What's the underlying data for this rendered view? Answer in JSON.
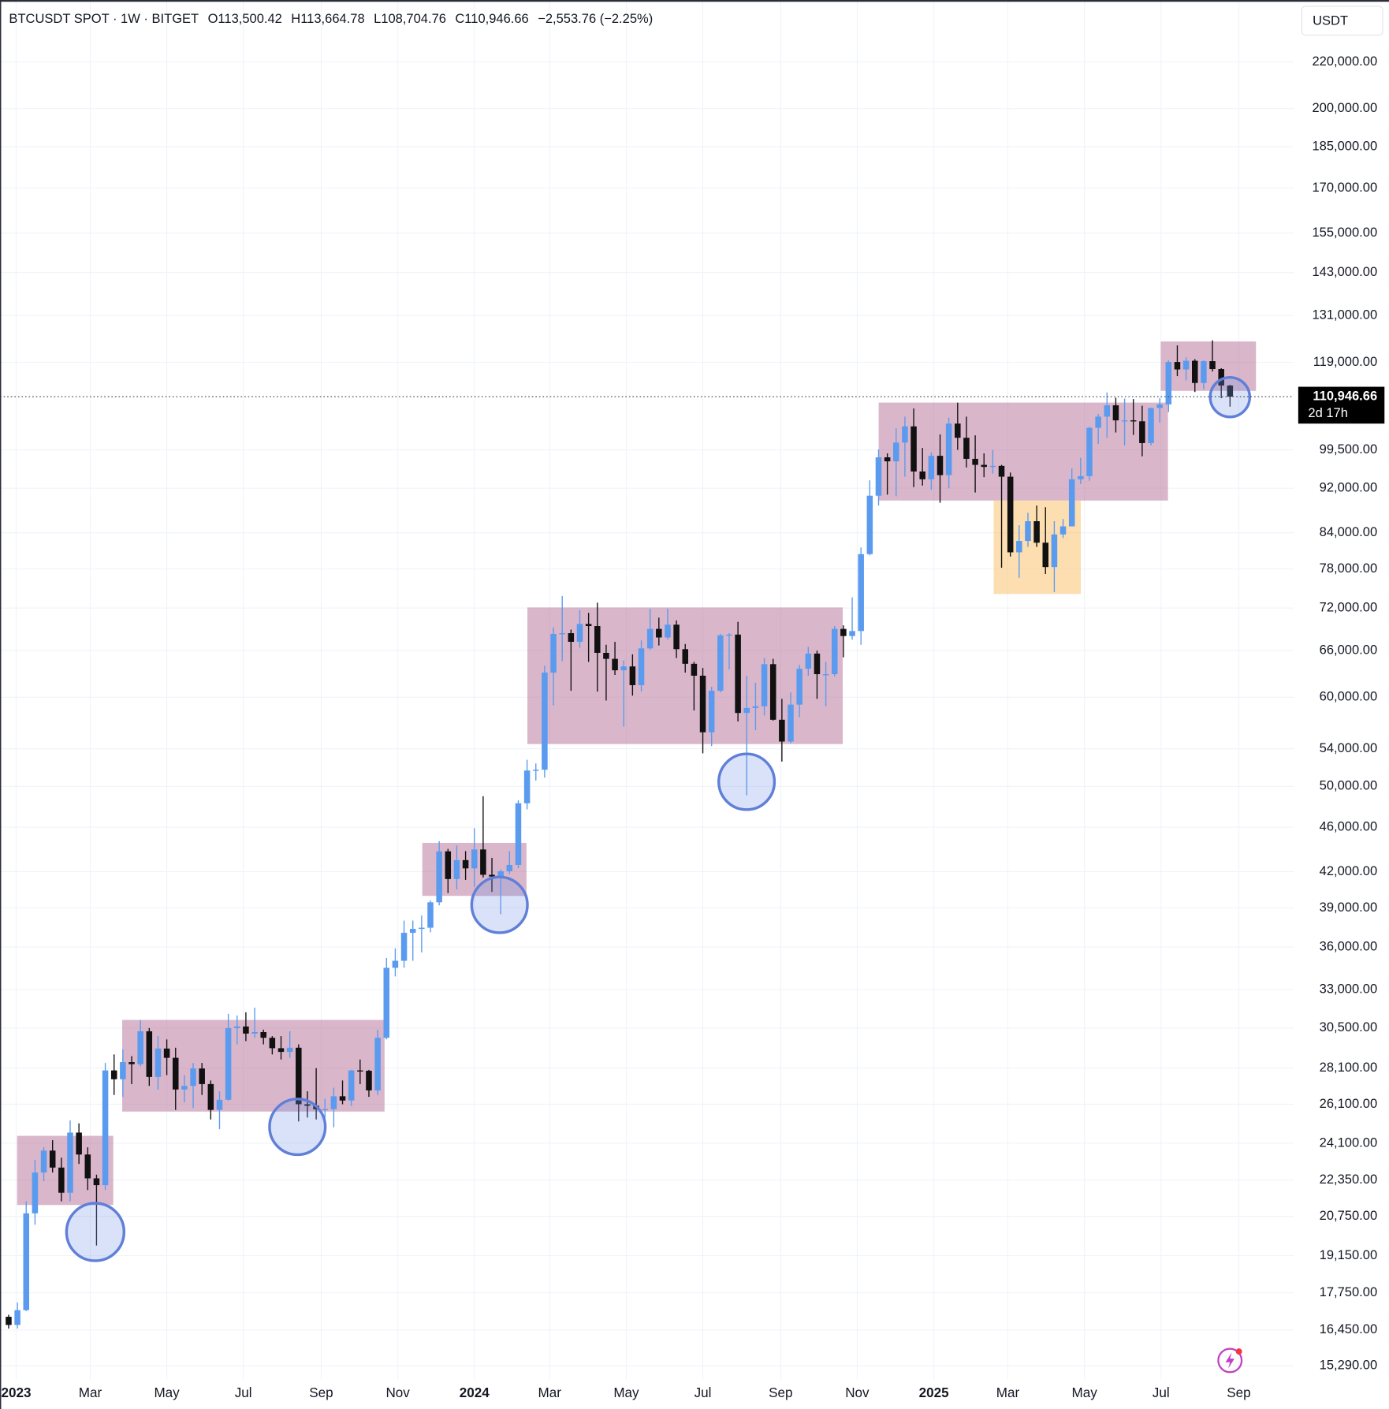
{
  "chart_data": {
    "type": "candlestick",
    "header": {
      "symbol": "BTCUSDT SPOT · 1W · BITGET",
      "open": "O113,500.42",
      "high": "H113,664.78",
      "low": "L108,704.76",
      "close": "C110,946.66",
      "change": "−2,553.76 (−2.25%)"
    },
    "currency": "USDT",
    "last_price": {
      "value": 110946.66,
      "label": "110,946.66"
    },
    "countdown": "2d 17h",
    "up_color": "#5b9bef",
    "down_color": "#111111",
    "log_scale": true,
    "grid": true,
    "xlim": [
      -0.98,
      146.25
    ],
    "xticks": [
      {
        "value": 0.857,
        "label": "2023"
      },
      {
        "value": 9.29,
        "label": "Mar"
      },
      {
        "value": 18,
        "label": "May"
      },
      {
        "value": 26.71,
        "label": "Jul"
      },
      {
        "value": 35.57,
        "label": "Sep"
      },
      {
        "value": 44.29,
        "label": "Nov"
      },
      {
        "value": 53,
        "label": "2024"
      },
      {
        "value": 61.57,
        "label": "Mar"
      },
      {
        "value": 70.29,
        "label": "May"
      },
      {
        "value": 79,
        "label": "Jul"
      },
      {
        "value": 87.86,
        "label": "Sep"
      },
      {
        "value": 96.57,
        "label": "Nov"
      },
      {
        "value": 105.29,
        "label": "2025"
      },
      {
        "value": 113.71,
        "label": "Mar"
      },
      {
        "value": 122.43,
        "label": "May"
      },
      {
        "value": 131.14,
        "label": "Jul"
      },
      {
        "value": 140,
        "label": "Sep"
      }
    ],
    "ylim": [
      14870,
      249700
    ],
    "yticks": [
      {
        "value": 220000,
        "label": "220,000.00"
      },
      {
        "value": 200000,
        "label": "200,000.00"
      },
      {
        "value": 185000,
        "label": "185,000.00"
      },
      {
        "value": 170000,
        "label": "170,000.00"
      },
      {
        "value": 155000,
        "label": "155,000.00"
      },
      {
        "value": 143000,
        "label": "143,000.00"
      },
      {
        "value": 131000,
        "label": "131,000.00"
      },
      {
        "value": 119000,
        "label": "119,000.00"
      },
      {
        "value": 99500,
        "label": "99,500.00"
      },
      {
        "value": 92000,
        "label": "92,000.00"
      },
      {
        "value": 84000,
        "label": "84,000.00"
      },
      {
        "value": 78000,
        "label": "78,000.00"
      },
      {
        "value": 72000,
        "label": "72,000.00"
      },
      {
        "value": 66000,
        "label": "66,000.00"
      },
      {
        "value": 60000,
        "label": "60,000.00"
      },
      {
        "value": 54000,
        "label": "54,000.00"
      },
      {
        "value": 50000,
        "label": "50,000.00"
      },
      {
        "value": 46000,
        "label": "46,000.00"
      },
      {
        "value": 42000,
        "label": "42,000.00"
      },
      {
        "value": 39000,
        "label": "39,000.00"
      },
      {
        "value": 36000,
        "label": "36,000.00"
      },
      {
        "value": 33000,
        "label": "33,000.00"
      },
      {
        "value": 30500,
        "label": "30,500.00"
      },
      {
        "value": 28100,
        "label": "28,100.00"
      },
      {
        "value": 26100,
        "label": "26,100.00"
      },
      {
        "value": 24100,
        "label": "24,100.00"
      },
      {
        "value": 22350,
        "label": "22,350.00"
      },
      {
        "value": 20750,
        "label": "20,750.00"
      },
      {
        "value": 19150,
        "label": "19,150.00"
      },
      {
        "value": 17750,
        "label": "17,750.00"
      },
      {
        "value": 16450,
        "label": "16,450.00"
      },
      {
        "value": 15290,
        "label": "15,290.00"
      }
    ],
    "candles": [
      [
        16900,
        16970,
        16500,
        16620
      ],
      [
        16620,
        17400,
        16500,
        17130
      ],
      [
        17130,
        21400,
        17100,
        20880
      ],
      [
        20880,
        23300,
        20400,
        22700
      ],
      [
        22700,
        23900,
        22300,
        23740
      ],
      [
        23740,
        24250,
        22700,
        22930
      ],
      [
        22930,
        23400,
        21400,
        21780
      ],
      [
        21780,
        25250,
        21400,
        24630
      ],
      [
        24630,
        25100,
        23100,
        23550
      ],
      [
        23550,
        23900,
        21900,
        22430
      ],
      [
        22430,
        22600,
        19550,
        22120
      ],
      [
        22120,
        28400,
        21900,
        27970
      ],
      [
        27970,
        28900,
        26600,
        27470
      ],
      [
        27470,
        29200,
        26500,
        28450
      ],
      [
        28450,
        28800,
        27200,
        28330
      ],
      [
        28330,
        31000,
        28200,
        30300
      ],
      [
        30300,
        30500,
        27100,
        27600
      ],
      [
        27600,
        30000,
        26900,
        29250
      ],
      [
        29250,
        29800,
        27700,
        28700
      ],
      [
        28700,
        29300,
        25800,
        26900
      ],
      [
        26900,
        27700,
        26200,
        27100
      ],
      [
        27100,
        28400,
        25900,
        28080
      ],
      [
        28080,
        28400,
        26600,
        27200
      ],
      [
        27200,
        27400,
        25300,
        25800
      ],
      [
        25800,
        26800,
        24800,
        26340
      ],
      [
        26340,
        31400,
        26300,
        30500
      ],
      [
        30500,
        31300,
        29500,
        30600
      ],
      [
        30600,
        31500,
        29700,
        30160
      ],
      [
        30160,
        31800,
        29900,
        30250
      ],
      [
        30250,
        30400,
        29500,
        29900
      ],
      [
        29900,
        30000,
        28900,
        29270
      ],
      [
        29270,
        30000,
        28600,
        29050
      ],
      [
        29050,
        30300,
        28700,
        29300
      ],
      [
        29300,
        29500,
        25200,
        26100
      ],
      [
        26100,
        26800,
        25400,
        26020
      ],
      [
        26020,
        28100,
        25300,
        25830
      ],
      [
        25830,
        26400,
        25300,
        25840
      ],
      [
        25840,
        27000,
        24900,
        26530
      ],
      [
        26530,
        27400,
        26100,
        26300
      ],
      [
        26300,
        28000,
        26000,
        27970
      ],
      [
        27970,
        28600,
        27200,
        27950
      ],
      [
        27950,
        28000,
        26500,
        26850
      ],
      [
        26850,
        30400,
        26600,
        29900
      ],
      [
        29900,
        35200,
        29800,
        34500
      ],
      [
        34500,
        35900,
        33900,
        35000
      ],
      [
        35000,
        38000,
        34500,
        37060
      ],
      [
        37060,
        38000,
        35000,
        37360
      ],
      [
        37360,
        38400,
        35600,
        37450
      ],
      [
        37450,
        39600,
        37100,
        39450
      ],
      [
        39450,
        44700,
        39200,
        43780
      ],
      [
        43780,
        44000,
        40200,
        41370
      ],
      [
        41370,
        44300,
        40500,
        43000
      ],
      [
        43000,
        43800,
        41300,
        42280
      ],
      [
        42280,
        45900,
        40700,
        43950
      ],
      [
        43950,
        49000,
        41500,
        41730
      ],
      [
        41730,
        43200,
        40300,
        41580
      ],
      [
        41580,
        42200,
        38500,
        42030
      ],
      [
        42030,
        43800,
        41800,
        42580
      ],
      [
        42580,
        48600,
        42300,
        48300
      ],
      [
        48300,
        52800,
        47700,
        51650
      ],
      [
        51650,
        52400,
        50600,
        51730
      ],
      [
        51730,
        64000,
        50900,
        63100
      ],
      [
        63100,
        69200,
        59000,
        68300
      ],
      [
        68300,
        73800,
        64600,
        68400
      ],
      [
        68400,
        68900,
        60800,
        67200
      ],
      [
        67200,
        71700,
        66400,
        69700
      ],
      [
        69700,
        71300,
        64500,
        69400
      ],
      [
        69400,
        72800,
        60700,
        65700
      ],
      [
        65700,
        66800,
        59600,
        64900
      ],
      [
        64900,
        67200,
        62800,
        63400
      ],
      [
        63400,
        64700,
        56500,
        63900
      ],
      [
        63900,
        65500,
        60200,
        61500
      ],
      [
        61500,
        67400,
        60700,
        66300
      ],
      [
        66300,
        71900,
        66100,
        69000
      ],
      [
        69000,
        70600,
        66700,
        67800
      ],
      [
        67800,
        71900,
        67500,
        69600
      ],
      [
        69600,
        70200,
        65000,
        66200
      ],
      [
        66200,
        66900,
        63100,
        64250
      ],
      [
        64250,
        64500,
        58400,
        62700
      ],
      [
        62700,
        63700,
        53500,
        55850
      ],
      [
        55850,
        61300,
        54300,
        60800
      ],
      [
        60800,
        68300,
        60600,
        68100
      ],
      [
        68100,
        68400,
        63500,
        68200
      ],
      [
        68200,
        70000,
        57100,
        58100
      ],
      [
        58100,
        62700,
        49100,
        58700
      ],
      [
        58700,
        61800,
        56100,
        58900
      ],
      [
        58900,
        65000,
        57800,
        64200
      ],
      [
        64200,
        64900,
        57200,
        57300
      ],
      [
        57300,
        59800,
        52600,
        54800
      ],
      [
        54800,
        60600,
        54600,
        59100
      ],
      [
        59100,
        64100,
        57600,
        63600
      ],
      [
        63600,
        66500,
        62700,
        65600
      ],
      [
        65600,
        66000,
        59800,
        62900
      ],
      [
        62900,
        64500,
        58900,
        62900
      ],
      [
        62900,
        69400,
        62600,
        69000
      ],
      [
        69000,
        69500,
        65100,
        68000
      ],
      [
        68000,
        73600,
        67500,
        68700
      ],
      [
        68700,
        81500,
        66800,
        80400
      ],
      [
        80400,
        93500,
        80200,
        90600
      ],
      [
        90600,
        99600,
        88800,
        98000
      ],
      [
        98000,
        98800,
        90800,
        97200
      ],
      [
        97200,
        104000,
        90500,
        101000
      ],
      [
        101000,
        106500,
        94200,
        104400
      ],
      [
        104400,
        108300,
        92200,
        95200
      ],
      [
        95200,
        99900,
        92500,
        93700
      ],
      [
        93700,
        99000,
        91700,
        98300
      ],
      [
        98300,
        102700,
        89300,
        94500
      ],
      [
        94500,
        106300,
        92000,
        105000
      ],
      [
        105000,
        109600,
        99500,
        102000
      ],
      [
        102000,
        106500,
        96000,
        97700
      ],
      [
        97700,
        102500,
        91200,
        96500
      ],
      [
        96500,
        98800,
        94100,
        96100
      ],
      [
        96100,
        99500,
        94800,
        96300
      ],
      [
        96300,
        96500,
        78200,
        94200
      ],
      [
        94200,
        95000,
        80000,
        80700
      ],
      [
        80700,
        85300,
        76600,
        82600
      ],
      [
        82600,
        87500,
        81600,
        86000
      ],
      [
        86000,
        88800,
        81600,
        82300
      ],
      [
        82300,
        88500,
        77200,
        78300
      ],
      [
        78300,
        86000,
        74400,
        83700
      ],
      [
        83700,
        86400,
        83100,
        85100
      ],
      [
        85100,
        95800,
        85100,
        93700
      ],
      [
        93700,
        97900,
        92800,
        94300
      ],
      [
        94300,
        104300,
        93400,
        104100
      ],
      [
        104100,
        107100,
        100700,
        106500
      ],
      [
        106500,
        111900,
        102000,
        109000
      ],
      [
        109000,
        110700,
        103100,
        105700
      ],
      [
        105700,
        110500,
        100400,
        105700
      ],
      [
        105700,
        110400,
        102600,
        105500
      ],
      [
        105500,
        108900,
        98200,
        100900
      ],
      [
        100900,
        108500,
        100400,
        108400
      ],
      [
        108400,
        110600,
        105200,
        109200
      ],
      [
        109200,
        119500,
        107500,
        119100
      ],
      [
        119100,
        123200,
        115700,
        117300
      ],
      [
        117300,
        120200,
        114700,
        119400
      ],
      [
        119400,
        119800,
        112000,
        114100
      ],
      [
        114100,
        119500,
        112600,
        119300
      ],
      [
        119300,
        124500,
        116800,
        117400
      ],
      [
        117400,
        117600,
        110600,
        113500
      ],
      [
        113500.42,
        113664.78,
        108704.76,
        110946.66
      ]
    ]
  }
}
